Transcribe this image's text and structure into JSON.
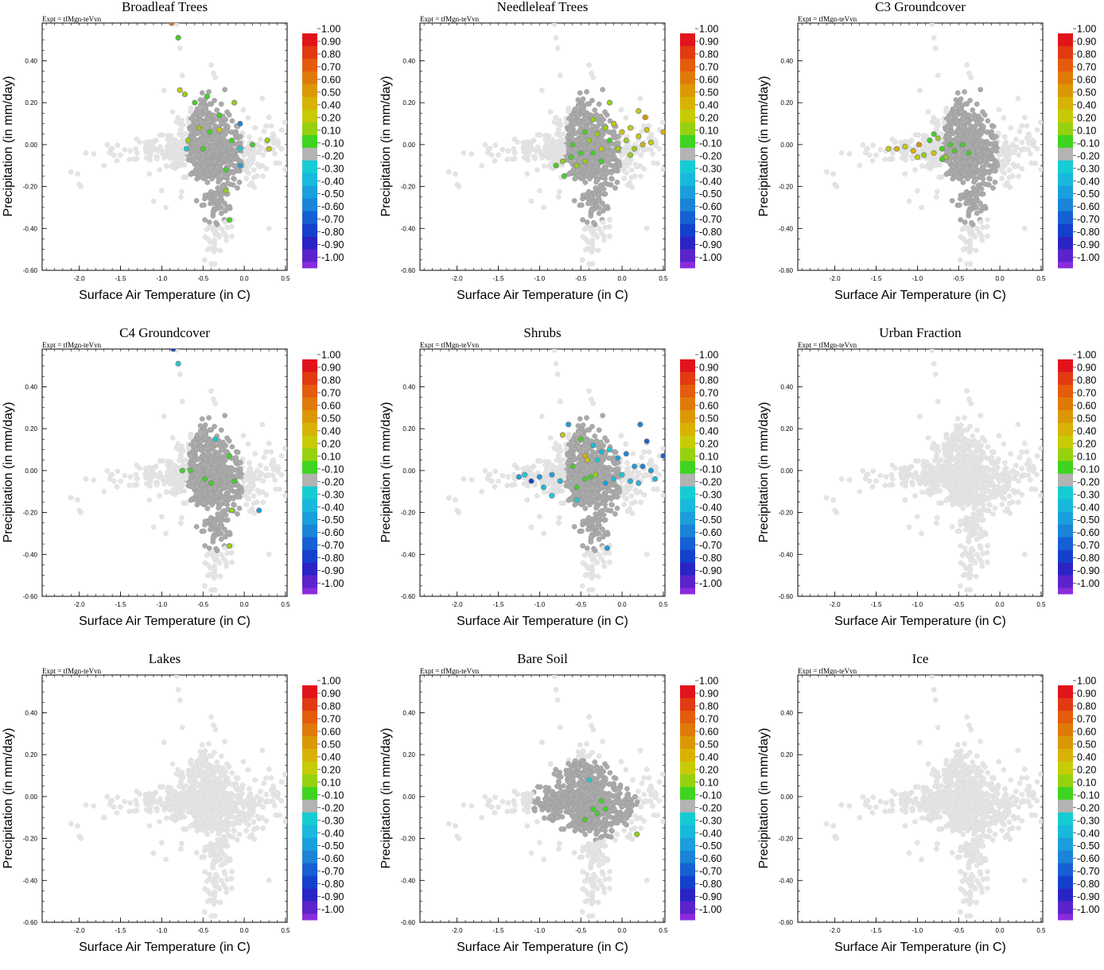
{
  "chart_data": {
    "type": "scatter",
    "expt_label": "Expt = tfMgn-teVvn",
    "xlabel": "Surface Air Temperature (in C)",
    "ylabel": "Precipitation (in mm/day)",
    "xlim": [
      -2.45,
      0.52
    ],
    "ylim": [
      -0.6,
      0.58
    ],
    "x_ticks": [
      "-2.0",
      "-1.5",
      "-1.0",
      "-0.5",
      "0.0",
      "0.5"
    ],
    "y_ticks": [
      "-0.60",
      "-0.40",
      "-0.20",
      "0.00",
      "0.20",
      "0.40"
    ],
    "colorbar": {
      "labels": [
        "1.00",
        "0.90",
        "0.80",
        "0.70",
        "0.60",
        "0.50",
        "0.40",
        "0.20",
        "0.10",
        "-0.10",
        "-0.20",
        "-0.30",
        "-0.40",
        "-0.50",
        "-0.60",
        "-0.70",
        "-0.80",
        "-0.90",
        "-1.00"
      ],
      "colors": [
        "#e2141b",
        "#e23a11",
        "#e45c0c",
        "#df7a08",
        "#dc9705",
        "#d8b204",
        "#c7cb06",
        "#96d110",
        "#3fd41f",
        "#b3b3b3",
        "#16ccd4",
        "#18b9dc",
        "#1a9fdc",
        "#1a84d8",
        "#1560d4",
        "#1540cc",
        "#2a24c4",
        "#5a23cc",
        "#8a2cdc"
      ]
    },
    "panels": [
      {
        "title": "Broadleaf Trees",
        "active": "dense",
        "colored": [
          [
            -0.88,
            0.58,
            "#df7a08"
          ],
          [
            -0.8,
            0.51,
            "#3fd41f"
          ],
          [
            -0.78,
            0.26,
            "#c7cb06"
          ],
          [
            -0.72,
            0.24,
            "#96d110"
          ],
          [
            -0.6,
            0.2,
            "#3fd41f"
          ],
          [
            -0.45,
            0.23,
            "#3fd41f"
          ],
          [
            -0.3,
            0.14,
            "#3fd41f"
          ],
          [
            -0.12,
            0.2,
            "#96d110"
          ],
          [
            -0.05,
            0.1,
            "#1a84d8"
          ],
          [
            -0.55,
            0.08,
            "#96d110"
          ],
          [
            -0.42,
            0.06,
            "#3fd41f"
          ],
          [
            -0.3,
            0.07,
            "#c7cb06"
          ],
          [
            -0.68,
            0.02,
            "#96d110"
          ],
          [
            -0.5,
            -0.02,
            "#3fd41f"
          ],
          [
            -0.15,
            0.02,
            "#3fd41f"
          ],
          [
            -0.05,
            -0.02,
            "#16ccd4"
          ],
          [
            0.1,
            0.0,
            "#3fd41f"
          ],
          [
            0.28,
            0.02,
            "#96d110"
          ],
          [
            0.3,
            -0.02,
            "#c7cb06"
          ],
          [
            -0.05,
            -0.1,
            "#1a9fdc"
          ],
          [
            -0.22,
            -0.12,
            "#3fd41f"
          ],
          [
            -0.22,
            -0.22,
            "#96d110"
          ],
          [
            -0.18,
            -0.36,
            "#3fd41f"
          ],
          [
            -0.7,
            -0.02,
            "#16ccd4"
          ]
        ]
      },
      {
        "title": "Needleleaf Trees",
        "active": "dense",
        "colored": [
          [
            -0.8,
            -0.1,
            "#3fd41f"
          ],
          [
            -0.72,
            -0.08,
            "#96d110"
          ],
          [
            -0.7,
            -0.15,
            "#3fd41f"
          ],
          [
            -0.62,
            -0.06,
            "#3fd41f"
          ],
          [
            -0.55,
            -0.1,
            "#96d110"
          ],
          [
            -0.5,
            -0.04,
            "#3fd41f"
          ],
          [
            -0.45,
            -0.08,
            "#96d110"
          ],
          [
            -0.4,
            0.02,
            "#96d110"
          ],
          [
            -0.35,
            -0.04,
            "#3fd41f"
          ],
          [
            -0.3,
            0.05,
            "#96d110"
          ],
          [
            -0.25,
            -0.02,
            "#c7cb06"
          ],
          [
            -0.2,
            0.08,
            "#96d110"
          ],
          [
            -0.15,
            0.02,
            "#3fd41f"
          ],
          [
            -0.1,
            0.1,
            "#c7cb06"
          ],
          [
            -0.05,
            -0.02,
            "#96d110"
          ],
          [
            0.0,
            0.06,
            "#c7cb06"
          ],
          [
            0.05,
            0.02,
            "#96d110"
          ],
          [
            0.1,
            0.08,
            "#c7cb06"
          ],
          [
            0.15,
            -0.02,
            "#96d110"
          ],
          [
            0.2,
            0.04,
            "#c7cb06"
          ],
          [
            0.25,
            0.0,
            "#d8b204"
          ],
          [
            0.3,
            0.07,
            "#c7cb06"
          ],
          [
            0.35,
            0.01,
            "#c7cb06"
          ],
          [
            0.28,
            0.13,
            "#dc9705"
          ],
          [
            0.2,
            0.16,
            "#c7cb06"
          ],
          [
            -0.15,
            0.2,
            "#96d110"
          ],
          [
            -0.35,
            0.12,
            "#96d110"
          ],
          [
            -0.6,
            0.0,
            "#3fd41f"
          ],
          [
            -0.25,
            -0.08,
            "#3fd41f"
          ],
          [
            0.1,
            -0.05,
            "#96d110"
          ],
          [
            -0.45,
            0.06,
            "#3fd41f"
          ],
          [
            0.5,
            0.06,
            "#d8b204"
          ]
        ]
      },
      {
        "title": "C3 Groundcover",
        "active": "dense",
        "colored": [
          [
            -1.35,
            -0.02,
            "#c7cb06"
          ],
          [
            -1.25,
            -0.02,
            "#d8b204"
          ],
          [
            -1.15,
            -0.01,
            "#c7cb06"
          ],
          [
            -1.05,
            -0.03,
            "#d8b204"
          ],
          [
            -0.98,
            0.0,
            "#dc9705"
          ],
          [
            -0.92,
            -0.05,
            "#96d110"
          ],
          [
            -0.85,
            0.02,
            "#3fd41f"
          ],
          [
            -0.8,
            -0.04,
            "#c7cb06"
          ],
          [
            -0.75,
            0.03,
            "#96d110"
          ],
          [
            -0.7,
            -0.02,
            "#3fd41f"
          ],
          [
            -0.65,
            -0.06,
            "#96d110"
          ],
          [
            -0.6,
            0.0,
            "#3fd41f"
          ],
          [
            -0.55,
            -0.03,
            "#3fd41f"
          ],
          [
            -0.45,
            0.0,
            "#3fd41f"
          ],
          [
            -0.38,
            -0.04,
            "#3fd41f"
          ],
          [
            -0.8,
            0.05,
            "#3fd41f"
          ],
          [
            -1.0,
            -0.06,
            "#c7cb06"
          ],
          [
            -0.7,
            -0.07,
            "#3fd41f"
          ]
        ]
      },
      {
        "title": "C4 Groundcover",
        "active": "dense",
        "colored": [
          [
            -0.86,
            0.58,
            "#1540cc"
          ],
          [
            -0.8,
            0.51,
            "#16ccd4"
          ],
          [
            -0.75,
            0.0,
            "#3fd41f"
          ],
          [
            -0.65,
            0.0,
            "#3fd41f"
          ],
          [
            -0.48,
            -0.04,
            "#3fd41f"
          ],
          [
            -0.4,
            -0.06,
            "#3fd41f"
          ],
          [
            -0.18,
            0.07,
            "#3fd41f"
          ],
          [
            -0.12,
            -0.05,
            "#3fd41f"
          ],
          [
            -0.15,
            -0.19,
            "#96d110"
          ],
          [
            -0.18,
            -0.36,
            "#96d110"
          ],
          [
            0.18,
            -0.19,
            "#1a9fdc"
          ],
          [
            -0.35,
            0.15,
            "#16ccd4"
          ]
        ]
      },
      {
        "title": "Shrubs",
        "active": "dense",
        "colored": [
          [
            -1.25,
            -0.03,
            "#1a9fdc"
          ],
          [
            -1.18,
            -0.02,
            "#16ccd4"
          ],
          [
            -1.1,
            -0.05,
            "#1540cc"
          ],
          [
            -1.0,
            -0.03,
            "#1a9fdc"
          ],
          [
            -0.95,
            -0.08,
            "#18b9dc"
          ],
          [
            -0.85,
            -0.02,
            "#1a9fdc"
          ],
          [
            -0.75,
            -0.05,
            "#18b9dc"
          ],
          [
            -0.72,
            0.17,
            "#c7cb06"
          ],
          [
            -0.65,
            0.22,
            "#1a9fdc"
          ],
          [
            -0.6,
            0.02,
            "#3fd41f"
          ],
          [
            -0.5,
            0.15,
            "#3fd41f"
          ],
          [
            -0.45,
            0.07,
            "#d8b204"
          ],
          [
            -0.42,
            0.05,
            "#c7cb06"
          ],
          [
            -0.38,
            -0.03,
            "#3fd41f"
          ],
          [
            -0.35,
            0.12,
            "#18b9dc"
          ],
          [
            -0.3,
            0.05,
            "#16ccd4"
          ],
          [
            -0.25,
            0.09,
            "#18b9dc"
          ],
          [
            -0.2,
            -0.06,
            "#1a9fdc"
          ],
          [
            -0.15,
            0.1,
            "#16ccd4"
          ],
          [
            -0.1,
            -0.04,
            "#18b9dc"
          ],
          [
            -0.05,
            0.06,
            "#1a9fdc"
          ],
          [
            0.0,
            -0.02,
            "#16ccd4"
          ],
          [
            0.05,
            0.08,
            "#1a84d8"
          ],
          [
            0.1,
            -0.05,
            "#18b9dc"
          ],
          [
            0.15,
            0.02,
            "#1a9fdc"
          ],
          [
            0.2,
            -0.06,
            "#18b9dc"
          ],
          [
            0.25,
            0.02,
            "#1a84d8"
          ],
          [
            0.3,
            0.14,
            "#1560d4"
          ],
          [
            0.35,
            0.0,
            "#1a9fdc"
          ],
          [
            0.4,
            -0.04,
            "#18b9dc"
          ],
          [
            0.22,
            0.22,
            "#1a84d8"
          ],
          [
            0.5,
            0.07,
            "#1560d4"
          ],
          [
            -0.18,
            -0.37,
            "#1a9fdc"
          ],
          [
            -0.55,
            -0.08,
            "#3fd41f"
          ],
          [
            -0.45,
            -0.04,
            "#3fd41f"
          ],
          [
            -0.32,
            -0.02,
            "#96d110"
          ],
          [
            -0.85,
            -0.12,
            "#16ccd4"
          ],
          [
            -0.55,
            -0.14,
            "#16ccd4"
          ]
        ]
      },
      {
        "title": "Urban Fraction",
        "active": "none",
        "colored": []
      },
      {
        "title": "Lakes",
        "active": "none",
        "colored": []
      },
      {
        "title": "Bare Soil",
        "active": "wide",
        "colored": [
          [
            -0.45,
            -0.11,
            "#3fd41f"
          ],
          [
            -0.35,
            -0.06,
            "#3fd41f"
          ],
          [
            -0.25,
            -0.02,
            "#3fd41f"
          ],
          [
            -0.2,
            -0.06,
            "#3fd41f"
          ],
          [
            -0.4,
            0.08,
            "#16ccd4"
          ],
          [
            0.18,
            -0.18,
            "#96d110"
          ],
          [
            -0.3,
            -0.08,
            "#3fd41f"
          ]
        ]
      },
      {
        "title": "Ice",
        "active": "none",
        "colored": []
      }
    ]
  }
}
